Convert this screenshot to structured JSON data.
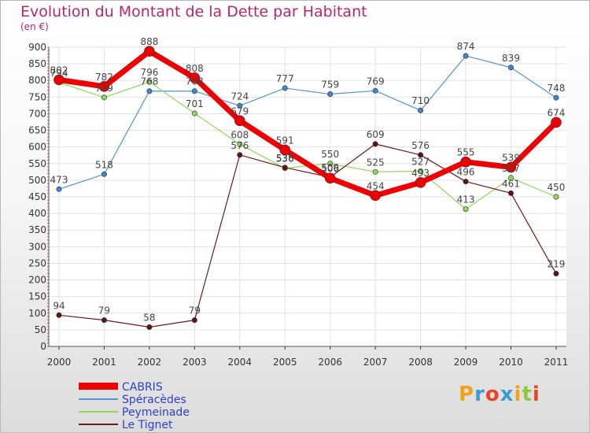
{
  "chart_data": {
    "type": "line",
    "title": "Evolution du Montant de la Dette par Habitant",
    "subtitle": "(en €)",
    "categories": [
      "2000",
      "2001",
      "2002",
      "2003",
      "2004",
      "2005",
      "2006",
      "2007",
      "2008",
      "2009",
      "2010",
      "2011"
    ],
    "ylim": [
      0,
      900
    ],
    "yticks": [
      0,
      50,
      100,
      150,
      200,
      250,
      300,
      350,
      400,
      450,
      500,
      550,
      600,
      650,
      700,
      750,
      800,
      850,
      900
    ],
    "grid": true,
    "legend_position": "bottom-left",
    "series": [
      {
        "name": "Spéracèdes",
        "color": "#4f95cf",
        "values": [
          473,
          518,
          768,
          768,
          724,
          777,
          759,
          769,
          710,
          874,
          839,
          748
        ]
      },
      {
        "name": "Peymeinade",
        "color": "#8fd65a",
        "values": [
          794,
          749,
          796,
          701,
          608,
          536,
          550,
          525,
          527,
          413,
          507,
          450
        ]
      },
      {
        "name": "Le Tignet",
        "color": "#6b1a1a",
        "values": [
          94,
          79,
          58,
          79,
          576,
          538,
          509,
          609,
          576,
          496,
          461,
          219
        ]
      },
      {
        "name": "CABRIS",
        "color": "#ee0000",
        "values": [
          802,
          782,
          888,
          808,
          679,
          591,
          506,
          454,
          493,
          555,
          539,
          674
        ]
      }
    ]
  },
  "legend": {
    "items": [
      {
        "label": "CABRIS",
        "color": "#ee0000"
      },
      {
        "label": "Spéracèdes",
        "color": "#4f95cf"
      },
      {
        "label": "Peymeinade",
        "color": "#8fd65a"
      },
      {
        "label": "Le Tignet",
        "color": "#6b1a1a"
      }
    ]
  },
  "logo": {
    "text": "Proxiti"
  }
}
